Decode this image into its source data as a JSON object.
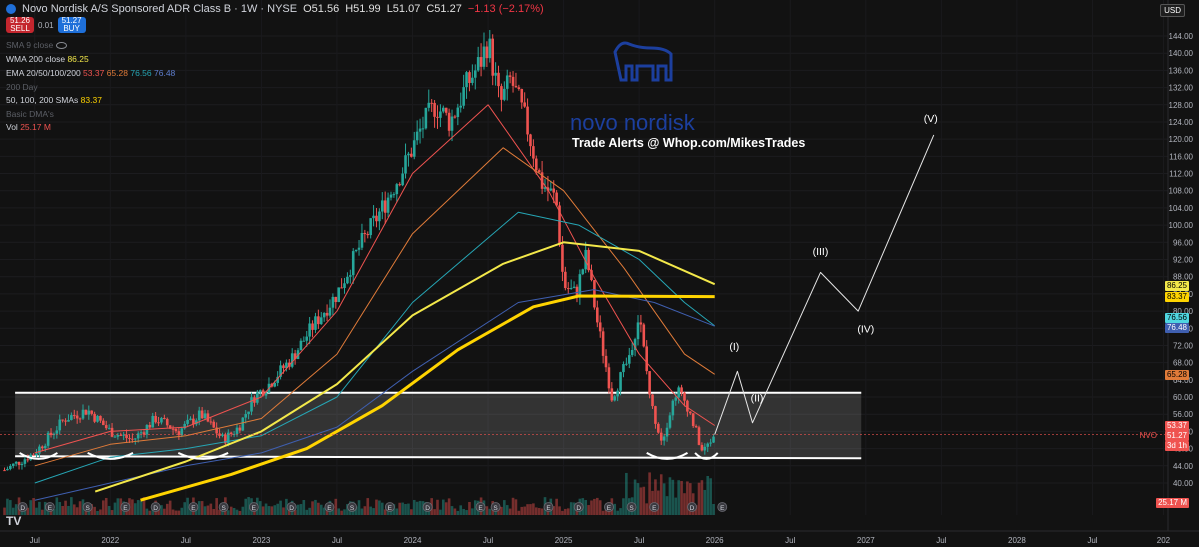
{
  "header": {
    "symbol_title": "Novo Nordisk A/S Sponsored ADR Class B · 1W · NYSE",
    "open": "O51.56",
    "high": "H51.99",
    "low": "L51.07",
    "close": "C51.27",
    "change": "−1.13 (−2.17%)",
    "sell_price": "51.26",
    "sell_label": "SELL",
    "spread": "0.01",
    "buy_price": "51.27",
    "buy_label": "BUY"
  },
  "indicators": [
    {
      "name": "SMA 9 close",
      "value": ""
    },
    {
      "name": "WMA 200 close",
      "value": "86.25"
    },
    {
      "name": "EMA 20/50/100/200",
      "values": [
        "53.37",
        "65.28",
        "76.56",
        "76.48"
      ]
    },
    {
      "name": "200 Day",
      "value": ""
    },
    {
      "name": "50, 100, 200 SMAs",
      "value": "83.37"
    },
    {
      "name": "Basic DMA's",
      "value": ""
    },
    {
      "name": "Vol",
      "value": "25.17 M"
    }
  ],
  "currency": "USD",
  "watermark": "Trade Alerts @ Whop.com/MikesTrades",
  "brand": "novo nordisk",
  "right_labels": {
    "wma": "86.25",
    "sma": "83.37",
    "ema100": "76.56",
    "ema200": "76.48",
    "ema50": "65.28",
    "ema20": "53.37",
    "ticker": "NVO",
    "price": "51.27",
    "countdown": "3d 1h",
    "volume": "25.17 M"
  },
  "colors": {
    "bg": "#121212",
    "up": "#26a69a",
    "down": "#ef5350",
    "wma": "#f3e84a",
    "sma": "#ffd400",
    "ema20": "#ef5350",
    "ema50": "#e07b39",
    "ema100": "#26a6b5",
    "ema200": "#3f5fb0"
  },
  "chart_data": {
    "type": "candlestick",
    "title": "Novo Nordisk A/S Sponsored ADR Class B · 1W · NYSE",
    "y_ticks": [
      40,
      44,
      48,
      52,
      56,
      60,
      64,
      68,
      72,
      76,
      80,
      84,
      88,
      92,
      96,
      100,
      104,
      108,
      112,
      116,
      120,
      124,
      128,
      132,
      136,
      140,
      144
    ],
    "x_ticks": [
      "Jul",
      "2022",
      "Jul",
      "2023",
      "Jul",
      "2024",
      "Jul",
      "2025",
      "Jul",
      "2026",
      "Jul",
      "2027",
      "Jul",
      "2028",
      "Jul",
      "202"
    ],
    "price_path": [
      [
        2021.3,
        43
      ],
      [
        2021.5,
        47
      ],
      [
        2021.7,
        55
      ],
      [
        2021.85,
        57
      ],
      [
        2022.0,
        52
      ],
      [
        2022.15,
        50
      ],
      [
        2022.3,
        55
      ],
      [
        2022.45,
        52
      ],
      [
        2022.6,
        56
      ],
      [
        2022.75,
        50
      ],
      [
        2022.85,
        53
      ],
      [
        2022.95,
        60
      ],
      [
        2023.05,
        63
      ],
      [
        2023.2,
        69
      ],
      [
        2023.35,
        77
      ],
      [
        2023.5,
        84
      ],
      [
        2023.65,
        95
      ],
      [
        2023.8,
        104
      ],
      [
        2023.95,
        114
      ],
      [
        2024.05,
        122
      ],
      [
        2024.15,
        128
      ],
      [
        2024.25,
        124
      ],
      [
        2024.35,
        132
      ],
      [
        2024.45,
        138
      ],
      [
        2024.5,
        143
      ],
      [
        2024.58,
        128
      ],
      [
        2024.65,
        134
      ],
      [
        2024.75,
        124
      ],
      [
        2024.85,
        110
      ],
      [
        2024.95,
        106
      ],
      [
        2025.0,
        86
      ],
      [
        2025.08,
        84
      ],
      [
        2025.15,
        93
      ],
      [
        2025.22,
        78
      ],
      [
        2025.32,
        60
      ],
      [
        2025.42,
        68
      ],
      [
        2025.5,
        79
      ],
      [
        2025.58,
        58
      ],
      [
        2025.65,
        50
      ],
      [
        2025.75,
        62
      ],
      [
        2025.82,
        58
      ],
      [
        2025.92,
        47
      ],
      [
        2026.0,
        51.27
      ]
    ],
    "ema20": [
      [
        2021.5,
        47
      ],
      [
        2022.0,
        52
      ],
      [
        2022.5,
        53
      ],
      [
        2023.0,
        60
      ],
      [
        2023.5,
        80
      ],
      [
        2024.0,
        112
      ],
      [
        2024.5,
        128
      ],
      [
        2024.9,
        108
      ],
      [
        2025.2,
        88
      ],
      [
        2025.5,
        70
      ],
      [
        2025.8,
        58
      ],
      [
        2026.0,
        53.37
      ]
    ],
    "ema50": [
      [
        2021.5,
        44
      ],
      [
        2022.0,
        49
      ],
      [
        2022.5,
        51
      ],
      [
        2023.0,
        55
      ],
      [
        2023.5,
        70
      ],
      [
        2024.0,
        98
      ],
      [
        2024.6,
        118
      ],
      [
        2025.0,
        108
      ],
      [
        2025.4,
        90
      ],
      [
        2025.8,
        70
      ],
      [
        2026.0,
        65.28
      ]
    ],
    "ema100": [
      [
        2021.5,
        40
      ],
      [
        2022.0,
        46
      ],
      [
        2022.5,
        48
      ],
      [
        2023.0,
        51
      ],
      [
        2023.5,
        60
      ],
      [
        2024.0,
        82
      ],
      [
        2024.7,
        103
      ],
      [
        2025.1,
        100
      ],
      [
        2025.5,
        92
      ],
      [
        2025.8,
        82
      ],
      [
        2026.0,
        76.56
      ]
    ],
    "ema200": [
      [
        2021.5,
        36
      ],
      [
        2022.0,
        40
      ],
      [
        2022.5,
        44
      ],
      [
        2023.0,
        47
      ],
      [
        2023.5,
        53
      ],
      [
        2024.0,
        66
      ],
      [
        2024.7,
        82
      ],
      [
        2025.2,
        85
      ],
      [
        2025.6,
        82
      ],
      [
        2026.0,
        76.48
      ]
    ],
    "wma200": [
      [
        2021.9,
        38
      ],
      [
        2022.5,
        45
      ],
      [
        2023.0,
        52
      ],
      [
        2023.5,
        63
      ],
      [
        2024.0,
        79
      ],
      [
        2024.6,
        91
      ],
      [
        2025.0,
        96
      ],
      [
        2025.5,
        94
      ],
      [
        2026.0,
        86.25
      ]
    ],
    "sma200": [
      [
        2022.2,
        36
      ],
      [
        2022.8,
        42
      ],
      [
        2023.3,
        48
      ],
      [
        2023.8,
        58
      ],
      [
        2024.3,
        71
      ],
      [
        2024.8,
        81
      ],
      [
        2025.1,
        83.5
      ],
      [
        2026.0,
        83.37
      ]
    ],
    "projection": [
      [
        2026.0,
        51.27
      ],
      [
        2026.15,
        66
      ],
      [
        2026.25,
        54
      ],
      [
        2026.7,
        89
      ],
      [
        2026.95,
        80
      ],
      [
        2027.45,
        121
      ]
    ],
    "wave_labels": [
      "(I)",
      "(II)",
      "(III)",
      "(IV)",
      "(V)"
    ],
    "range_box": {
      "top": 61,
      "bottom": 46
    },
    "event_markers": [
      "D",
      "E",
      "S",
      "E"
    ]
  }
}
